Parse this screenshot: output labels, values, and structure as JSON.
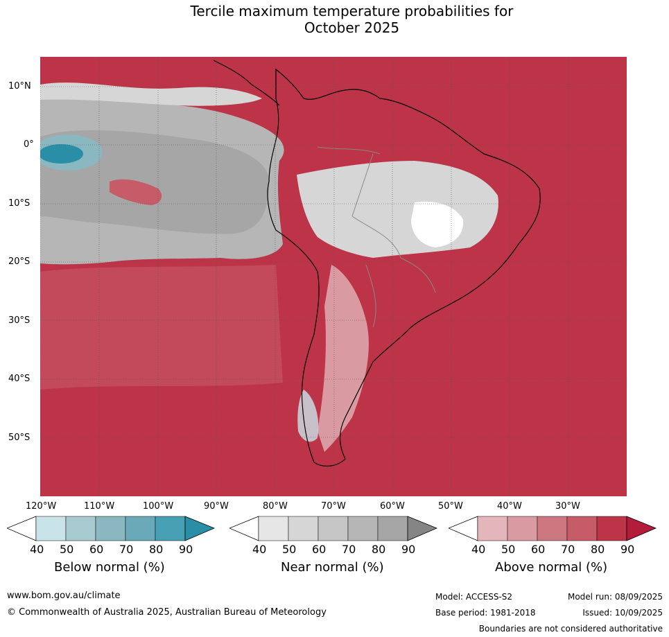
{
  "title_line1": "Tercile maximum temperature probabilities for",
  "title_line2": "October 2025",
  "lat_labels": [
    "10°N",
    "0°",
    "10°S",
    "20°S",
    "30°S",
    "40°S",
    "50°S"
  ],
  "lon_labels": [
    "120°W",
    "110°W",
    "100°W",
    "90°W",
    "80°W",
    "70°W",
    "60°W",
    "50°W",
    "40°W",
    "30°W"
  ],
  "legends": [
    {
      "name": "Below normal (%)",
      "ticks": [
        "40",
        "50",
        "60",
        "70",
        "80",
        "90"
      ],
      "colors": [
        "#ffffff",
        "#c9e3e9",
        "#a8cbd2",
        "#8ab7c0",
        "#6aa9b8",
        "#47a0b3",
        "#2a8fa6"
      ]
    },
    {
      "name": "Near normal (%)",
      "ticks": [
        "40",
        "50",
        "60",
        "70",
        "80",
        "90"
      ],
      "colors": [
        "#ffffff",
        "#e6e6e6",
        "#d6d6d6",
        "#c6c6c6",
        "#b6b6b6",
        "#a6a6a6",
        "#858585"
      ]
    },
    {
      "name": "Above normal (%)",
      "ticks": [
        "40",
        "50",
        "60",
        "70",
        "80",
        "90"
      ],
      "colors": [
        "#ffffff",
        "#e3b6bc",
        "#d99aa2",
        "#cd7780",
        "#c65c68",
        "#bd3448",
        "#b31c3b"
      ]
    }
  ],
  "footer": {
    "url": "www.bom.gov.au/climate",
    "copyright": "© Commonwealth of Australia 2025, Australian Bureau of Meteorology",
    "model": "Model: ACCESS-S2",
    "base_period": "Base period: 1981-2018",
    "model_run": "Model run: 08/09/2025",
    "issued": "Issued: 10/09/2025",
    "disclaimer": "Boundaries are not considered authoritative"
  }
}
